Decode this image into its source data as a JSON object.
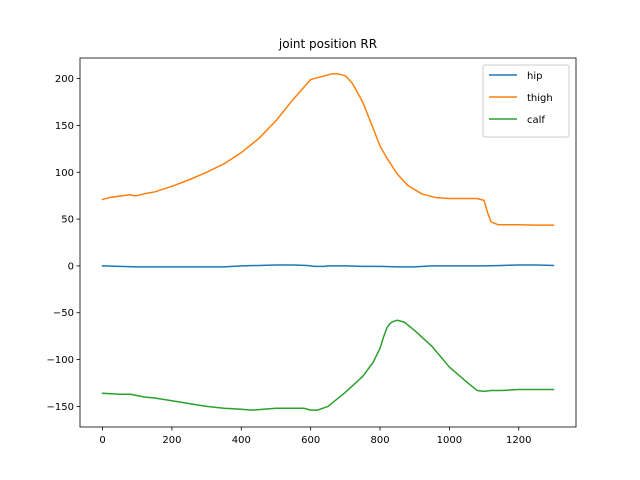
{
  "chart_data": {
    "type": "line",
    "title": "joint position RR",
    "xlabel": "",
    "ylabel": "",
    "xlim": [
      -65,
      1365
    ],
    "ylim": [
      -172,
      222
    ],
    "xticks": [
      0,
      200,
      400,
      600,
      800,
      1000,
      1200
    ],
    "yticks": [
      -150,
      -100,
      -50,
      0,
      50,
      100,
      150,
      200
    ],
    "grid": false,
    "legend_position": "top-right",
    "series": [
      {
        "name": "hip",
        "color": "#1f77b4",
        "x": [
          0,
          50,
          100,
          150,
          200,
          250,
          300,
          350,
          400,
          450,
          500,
          550,
          590,
          610,
          640,
          650,
          700,
          750,
          800,
          850,
          900,
          950,
          1000,
          1050,
          1100,
          1150,
          1200,
          1250,
          1300
        ],
        "y": [
          0,
          -0.5,
          -1,
          -1,
          -1,
          -1,
          -1,
          -1,
          0,
          0.5,
          1,
          1,
          0.5,
          -0.5,
          -0.5,
          0,
          0,
          -0.5,
          -0.5,
          -1,
          -1,
          0,
          0,
          0,
          0,
          0.5,
          1,
          1,
          0.5
        ]
      },
      {
        "name": "thigh",
        "color": "#ff7f0e",
        "x": [
          0,
          20,
          40,
          60,
          80,
          90,
          100,
          120,
          150,
          200,
          250,
          300,
          350,
          400,
          450,
          500,
          550,
          600,
          640,
          660,
          680,
          700,
          720,
          750,
          780,
          800,
          820,
          850,
          880,
          920,
          960,
          1000,
          1040,
          1080,
          1100,
          1110,
          1120,
          1140,
          1200,
          1250,
          1300
        ],
        "y": [
          71,
          73,
          74,
          75,
          76,
          75,
          75,
          77,
          79,
          85,
          92,
          100,
          109,
          121,
          136,
          155,
          178,
          199,
          203,
          205,
          205,
          203,
          195,
          175,
          147,
          128,
          115,
          98,
          86,
          77,
          73,
          72,
          72,
          72,
          70,
          57,
          47,
          44,
          44,
          43.5,
          43.5
        ]
      },
      {
        "name": "calf",
        "color": "#2ca02c",
        "x": [
          0,
          50,
          80,
          120,
          150,
          200,
          250,
          300,
          350,
          400,
          430,
          500,
          550,
          580,
          600,
          620,
          650,
          700,
          750,
          780,
          800,
          810,
          820,
          830,
          840,
          850,
          870,
          900,
          950,
          1000,
          1050,
          1080,
          1100,
          1120,
          1150,
          1200,
          1250,
          1300
        ],
        "y": [
          -136,
          -137,
          -137,
          -140,
          -141,
          -144,
          -147,
          -150,
          -152,
          -153,
          -154,
          -152,
          -152,
          -152,
          -154,
          -154,
          -150,
          -135,
          -118,
          -103,
          -88,
          -76,
          -66,
          -61,
          -59,
          -58,
          -60,
          -69,
          -86,
          -108,
          -124,
          -133,
          -134,
          -133,
          -133,
          -132,
          -132,
          -132
        ]
      }
    ]
  }
}
